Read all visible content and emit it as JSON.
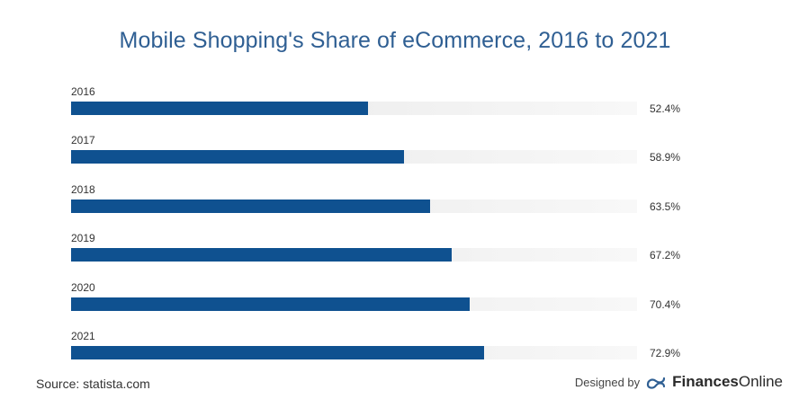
{
  "chart_data": {
    "type": "bar",
    "orientation": "horizontal",
    "title": "Mobile Shopping's Share of eCommerce, 2016 to 2021",
    "categories": [
      "2016",
      "2017",
      "2018",
      "2019",
      "2020",
      "2021"
    ],
    "values": [
      52.4,
      58.9,
      63.5,
      67.2,
      70.4,
      72.9
    ],
    "value_labels": [
      "52.4%",
      "58.9%",
      "63.5%",
      "67.2%",
      "70.4%",
      "72.9%"
    ],
    "unit": "%",
    "xlim": [
      0,
      100
    ],
    "grid": false,
    "bar_color": "#0f5190",
    "track_color": "#e8e8e8"
  },
  "footer": {
    "source": "Source: statista.com",
    "designed_by": "Designed by",
    "brand_bold": "Finances",
    "brand_regular": "Online",
    "logo_icon": "financesonline-logo-icon",
    "brand_color": "#2f5f93"
  }
}
